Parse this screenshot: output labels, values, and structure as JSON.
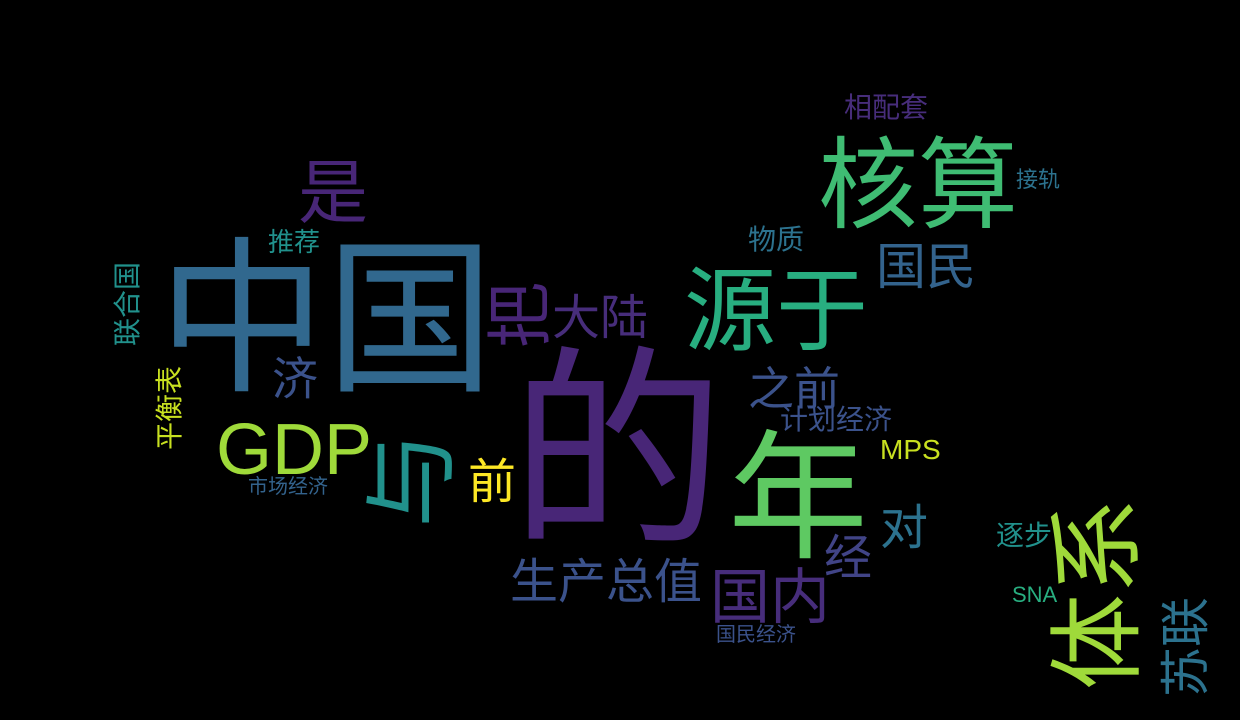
{
  "words": {
    "de": "的",
    "zhongguo": "中国",
    "nian": "年",
    "hesuan": "核算",
    "yuanyu": "源于",
    "tixi": "体系",
    "gdp": "GDP",
    "shi": "是",
    "ba": "把",
    "dalu": "大陆",
    "yu": "与",
    "guomin": "国民",
    "guonei": "国内",
    "shengchanzongzhi": "生产总值",
    "sulian": "苏联",
    "zhiqian": "之前",
    "qian": "前",
    "dui": "对",
    "jing": "经",
    "ji": "济",
    "jihuajingji": "计划经济",
    "mps": "MPS",
    "wuzhi": "物质",
    "tuijian": "推荐",
    "lianheguo": "联合国",
    "pinghengbiao": "平衡表",
    "shichangjingji": "市场经济",
    "xiangpeitao": "相配套",
    "jiegui": "接轨",
    "zhubu": "逐步",
    "sna": "SNA",
    "guominjingji": "国民经济"
  },
  "colors": {
    "background": "#000000",
    "dark_purple": "#482677",
    "purple": "#472d7b",
    "indigo": "#414487",
    "slate_blue": "#3b528b",
    "steel_blue": "#33638d",
    "blue": "#2c728e",
    "teal": "#21918c",
    "green_teal": "#28ae80",
    "green": "#3fbc73",
    "lime": "#5ec962",
    "yellow_green": "#9fda3a",
    "yellow": "#c8e020",
    "bright_yellow": "#fde725"
  }
}
